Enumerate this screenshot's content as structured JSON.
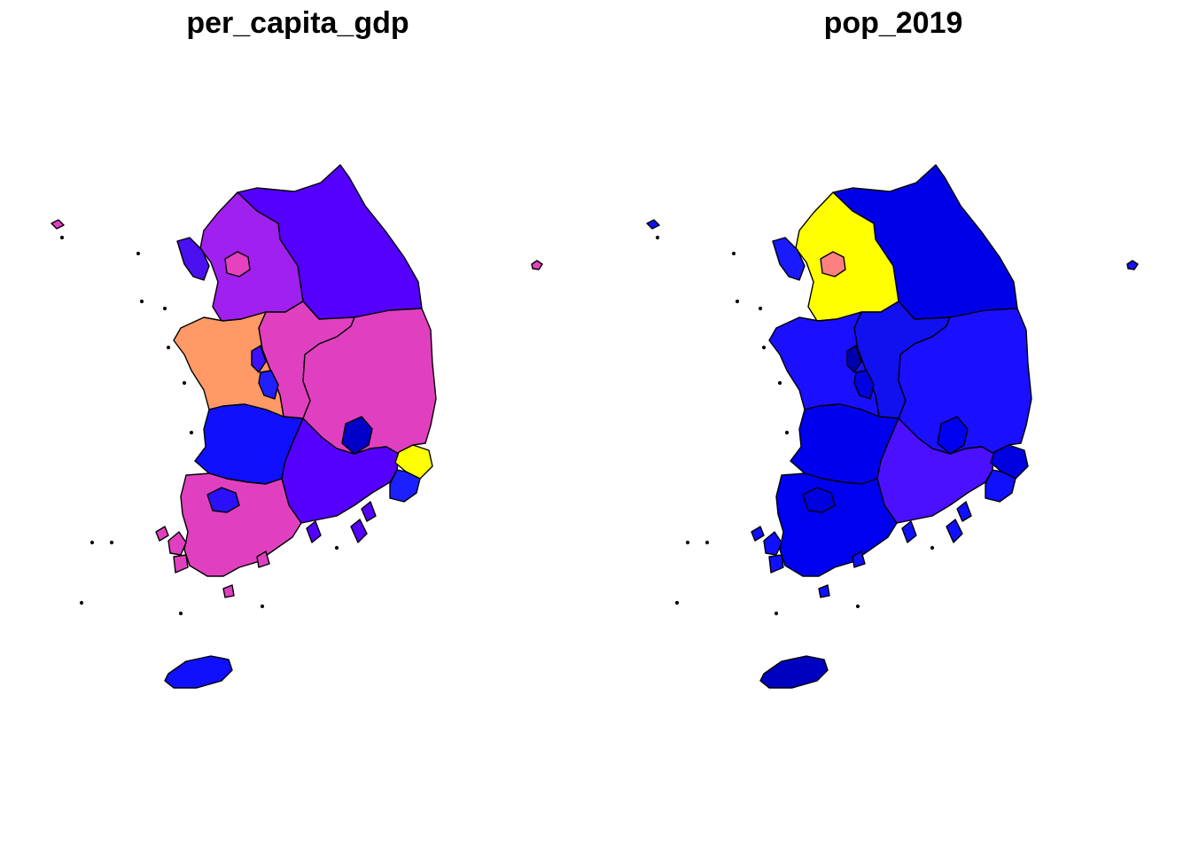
{
  "maps": [
    {
      "title": "per_capita_gdp",
      "fills": {
        "gangwon": "#5500ff",
        "gyeonggi": "#a020ef",
        "seoul": "#e642bf",
        "incheon": "#4a10f0",
        "chungnam": "#ff9966",
        "sejong": "#3a10ff",
        "daejeon": "#2020ff",
        "chungbuk": "#e040c0",
        "gyeongbuk": "#e040c0",
        "daegu": "#0000c8",
        "ulsan": "#ffff00",
        "busan": "#1a20ff",
        "gyeongnam": "#5500ff",
        "jeonbuk": "#1010ff",
        "jeonnam": "#e040c0",
        "gwangju": "#2a10ff",
        "jeju": "#1010ff",
        "islands_west": "#e040c0",
        "islands_south": "#5500ff",
        "ulleung": "#e642bf"
      }
    },
    {
      "title": "pop_2019",
      "fills": {
        "gangwon": "#0000e8",
        "gyeonggi": "#ffff00",
        "seoul": "#ff8080",
        "incheon": "#1a1aff",
        "chungnam": "#1a10ff",
        "sejong": "#0000b0",
        "daejeon": "#0000e0",
        "chungbuk": "#1010f0",
        "gyeongbuk": "#1a10ff",
        "daegu": "#0000f0",
        "ulsan": "#0000e0",
        "busan": "#1010ff",
        "gyeongnam": "#4a10ff",
        "jeonbuk": "#0000ee",
        "jeonnam": "#0000f0",
        "gwangju": "#0000e0",
        "jeju": "#0000c0",
        "islands_west": "#1010ff",
        "islands_south": "#1010ff",
        "ulleung": "#1a10ff"
      }
    }
  ]
}
